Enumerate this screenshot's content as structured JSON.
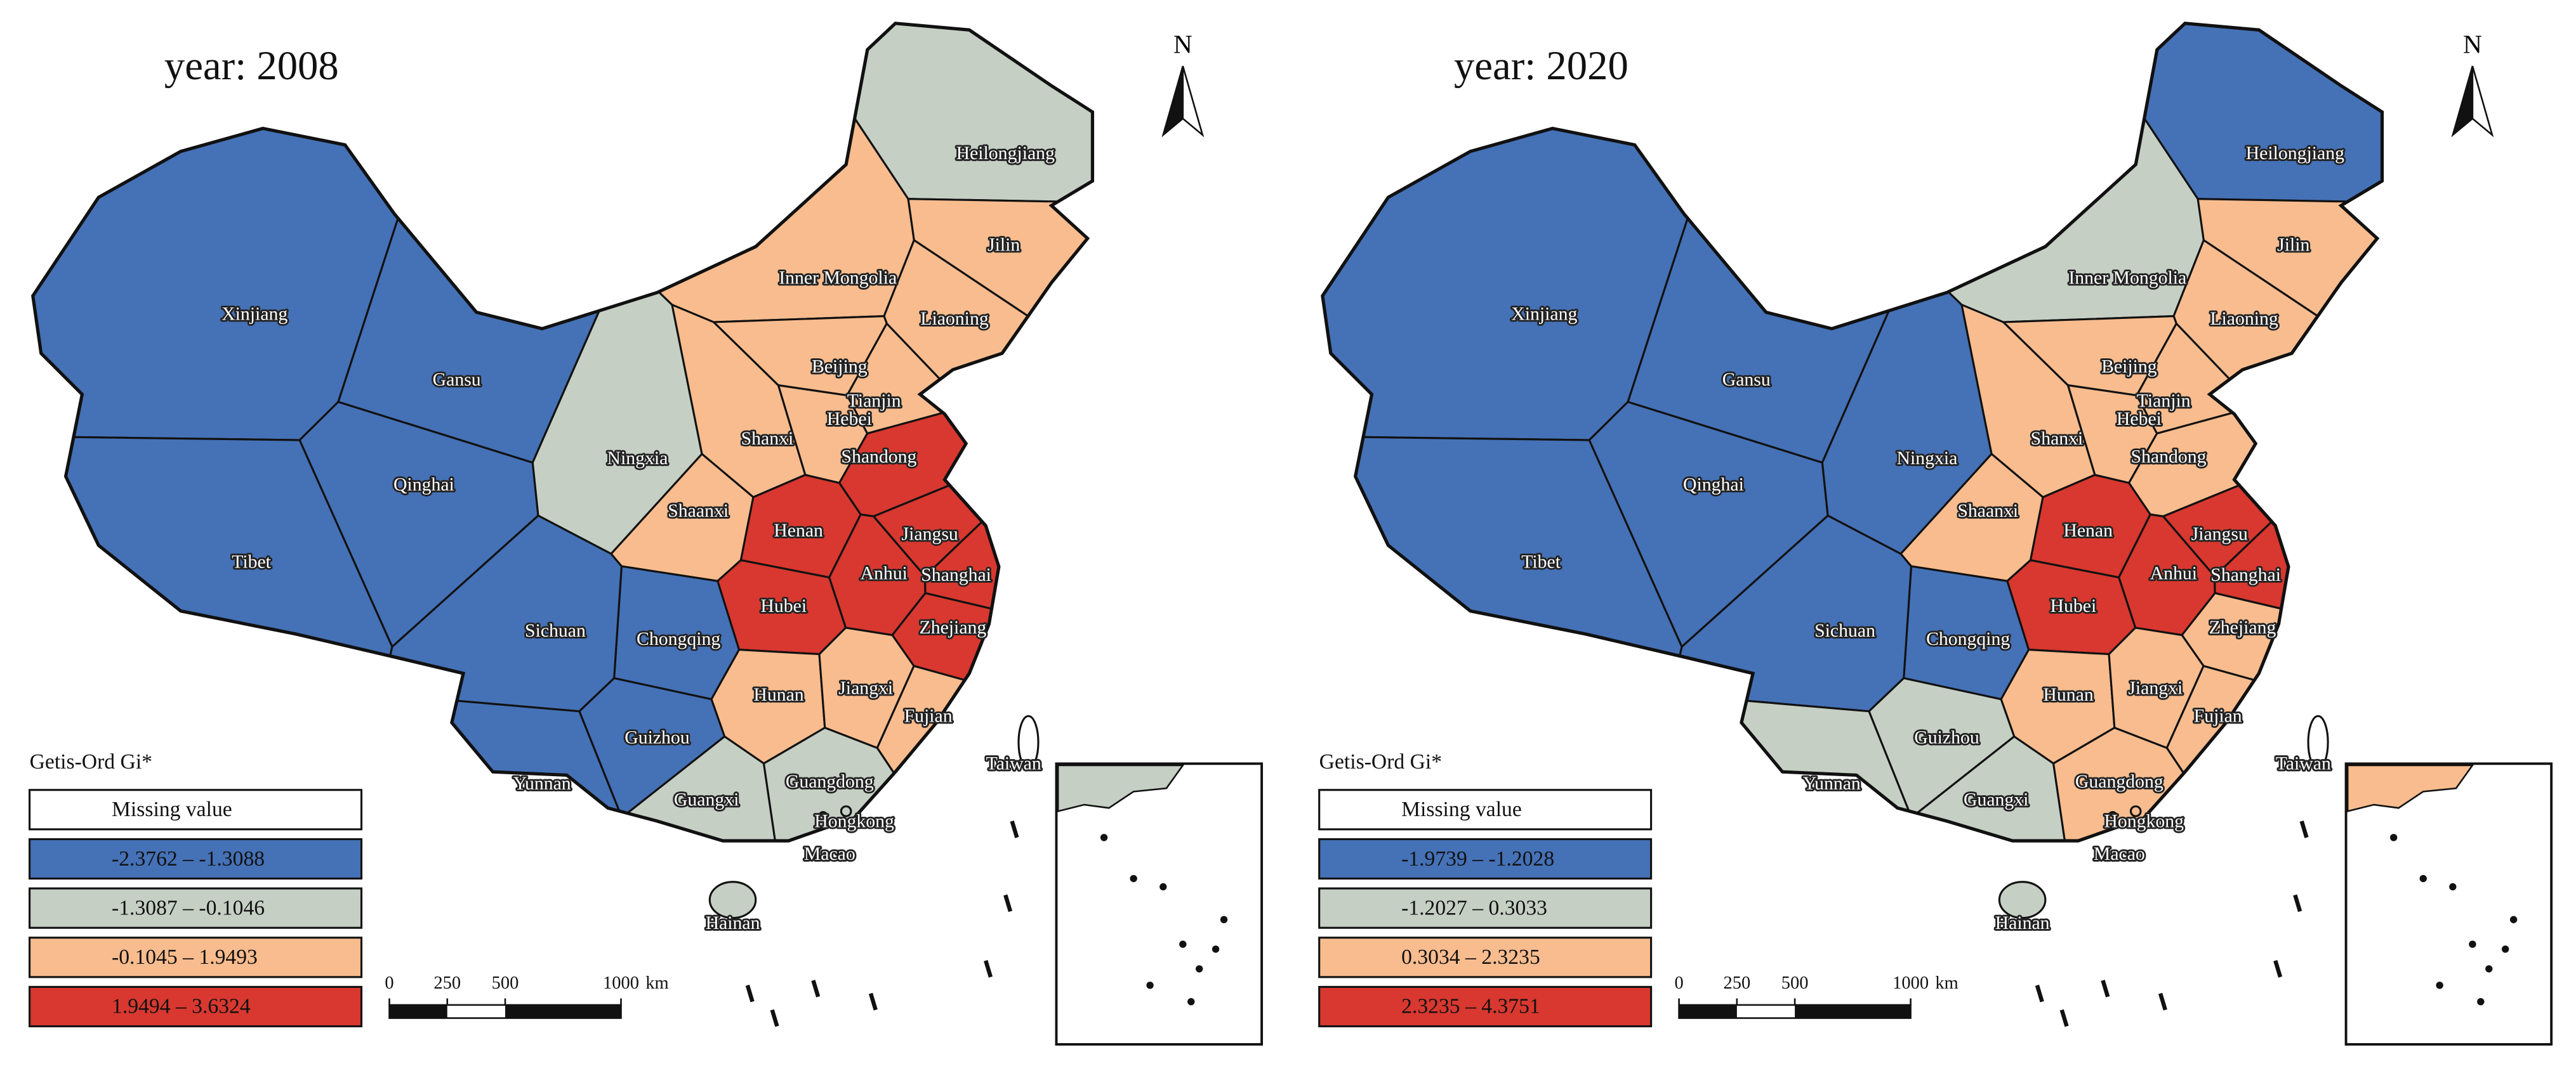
{
  "maps": [
    {
      "title": "year: 2008",
      "north": "N",
      "legend": {
        "title": "Getis-Ord Gi*",
        "items": [
          {
            "label": "Missing value",
            "color": "#ffffff"
          },
          {
            "label": "-2.3762 – -1.3088",
            "color": "#4571b6"
          },
          {
            "label": "-1.3087 – -0.1046",
            "color": "#c5cfc4"
          },
          {
            "label": "-0.1045 – 1.9493",
            "color": "#f8bc8e"
          },
          {
            "label": "1.9494 – 3.6324",
            "color": "#d8382f"
          }
        ]
      },
      "scale_bar": {
        "ticks": [
          0,
          250,
          500,
          1000
        ],
        "unit": "km"
      },
      "provinces": [
        {
          "name": "Xinjiang",
          "class": 1
        },
        {
          "name": "Tibet",
          "class": 1
        },
        {
          "name": "Qinghai",
          "class": 1
        },
        {
          "name": "Gansu",
          "class": 1
        },
        {
          "name": "Ningxia",
          "class": 2
        },
        {
          "name": "Inner Mongolia",
          "class": 3
        },
        {
          "name": "Heilongjiang",
          "class": 2
        },
        {
          "name": "Jilin",
          "class": 3
        },
        {
          "name": "Liaoning",
          "class": 3
        },
        {
          "name": "Beijing",
          "class": 3
        },
        {
          "name": "Tianjin",
          "class": 3
        },
        {
          "name": "Hebei",
          "class": 3
        },
        {
          "name": "Shanxi",
          "class": 3
        },
        {
          "name": "Shandong",
          "class": 4
        },
        {
          "name": "Shaanxi",
          "class": 3
        },
        {
          "name": "Henan",
          "class": 4
        },
        {
          "name": "Jiangsu",
          "class": 4
        },
        {
          "name": "Anhui",
          "class": 4
        },
        {
          "name": "Shanghai",
          "class": 4
        },
        {
          "name": "Hubei",
          "class": 4
        },
        {
          "name": "Zhejiang",
          "class": 4
        },
        {
          "name": "Chongqing",
          "class": 1
        },
        {
          "name": "Sichuan",
          "class": 1
        },
        {
          "name": "Hunan",
          "class": 3
        },
        {
          "name": "Jiangxi",
          "class": 3
        },
        {
          "name": "Fujian",
          "class": 3
        },
        {
          "name": "Guizhou",
          "class": 1
        },
        {
          "name": "Yunnan",
          "class": 1
        },
        {
          "name": "Guangxi",
          "class": 2
        },
        {
          "name": "Guangdong",
          "class": 2
        },
        {
          "name": "Hongkong",
          "class": 2
        },
        {
          "name": "Macao",
          "class": 2
        },
        {
          "name": "Hainan",
          "class": 2
        },
        {
          "name": "Taiwan",
          "class": 0
        }
      ]
    },
    {
      "title": "year: 2020",
      "north": "N",
      "legend": {
        "title": "Getis-Ord Gi*",
        "items": [
          {
            "label": "Missing value",
            "color": "#ffffff"
          },
          {
            "label": "-1.9739 – -1.2028",
            "color": "#4571b6"
          },
          {
            "label": "-1.2027 – 0.3033",
            "color": "#c5cfc4"
          },
          {
            "label": "0.3034 – 2.3235",
            "color": "#f8bc8e"
          },
          {
            "label": "2.3235 – 4.3751",
            "color": "#d8382f"
          }
        ]
      },
      "scale_bar": {
        "ticks": [
          0,
          250,
          500,
          1000
        ],
        "unit": "km"
      },
      "provinces": [
        {
          "name": "Xinjiang",
          "class": 1
        },
        {
          "name": "Tibet",
          "class": 1
        },
        {
          "name": "Qinghai",
          "class": 1
        },
        {
          "name": "Gansu",
          "class": 1
        },
        {
          "name": "Ningxia",
          "class": 1
        },
        {
          "name": "Inner Mongolia",
          "class": 2
        },
        {
          "name": "Heilongjiang",
          "class": 1
        },
        {
          "name": "Jilin",
          "class": 3
        },
        {
          "name": "Liaoning",
          "class": 3
        },
        {
          "name": "Beijing",
          "class": 3
        },
        {
          "name": "Tianjin",
          "class": 3
        },
        {
          "name": "Hebei",
          "class": 3
        },
        {
          "name": "Shanxi",
          "class": 3
        },
        {
          "name": "Shandong",
          "class": 3
        },
        {
          "name": "Shaanxi",
          "class": 3
        },
        {
          "name": "Henan",
          "class": 4
        },
        {
          "name": "Jiangsu",
          "class": 4
        },
        {
          "name": "Anhui",
          "class": 4
        },
        {
          "name": "Shanghai",
          "class": 4
        },
        {
          "name": "Hubei",
          "class": 4
        },
        {
          "name": "Zhejiang",
          "class": 3
        },
        {
          "name": "Chongqing",
          "class": 1
        },
        {
          "name": "Sichuan",
          "class": 1
        },
        {
          "name": "Hunan",
          "class": 3
        },
        {
          "name": "Jiangxi",
          "class": 3
        },
        {
          "name": "Fujian",
          "class": 3
        },
        {
          "name": "Guizhou",
          "class": 2
        },
        {
          "name": "Yunnan",
          "class": 2
        },
        {
          "name": "Guangxi",
          "class": 2
        },
        {
          "name": "Guangdong",
          "class": 3
        },
        {
          "name": "Hongkong",
          "class": 3
        },
        {
          "name": "Macao",
          "class": 3
        },
        {
          "name": "Hainan",
          "class": 2
        },
        {
          "name": "Taiwan",
          "class": 0
        }
      ]
    }
  ]
}
